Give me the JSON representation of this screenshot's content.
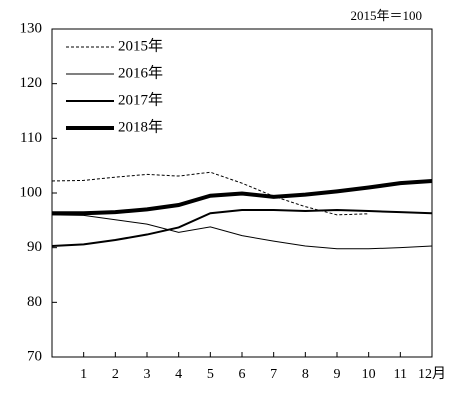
{
  "chart_data": {
    "type": "line",
    "note": "2015年＝100",
    "x": [
      0,
      1,
      2,
      3,
      4,
      5,
      6,
      7,
      8,
      9,
      10,
      11,
      12
    ],
    "xlim": [
      0,
      12
    ],
    "xticks": [
      1,
      2,
      3,
      4,
      5,
      6,
      7,
      8,
      9,
      10,
      11,
      {
        "value": 12,
        "label": "12月"
      }
    ],
    "ylim": [
      70,
      130
    ],
    "yticks": [
      70,
      80,
      90,
      100,
      110,
      120,
      130
    ],
    "legend": "upper left",
    "series": [
      {
        "name": "2015年",
        "color": "#000000",
        "dash": "3,2",
        "width": 1,
        "values": [
          102.2,
          102.3,
          102.9,
          103.4,
          103.1,
          103.8,
          101.8,
          99.4,
          97.5,
          96.0,
          96.2,
          null,
          null
        ]
      },
      {
        "name": "2016年",
        "color": "#000000",
        "width": 1,
        "values": [
          96.0,
          95.9,
          95.1,
          94.3,
          92.8,
          93.8,
          92.2,
          91.2,
          90.3,
          89.8,
          89.8,
          90.0,
          90.3
        ]
      },
      {
        "name": "2017年",
        "color": "#000000",
        "width": 2,
        "values": [
          90.3,
          90.6,
          91.4,
          92.4,
          93.7,
          96.3,
          96.9,
          96.9,
          96.7,
          96.9,
          96.7,
          96.5,
          96.3
        ]
      },
      {
        "name": "2018年",
        "color": "#000000",
        "width": 4,
        "values": [
          96.3,
          96.3,
          96.5,
          97.0,
          97.8,
          99.5,
          99.9,
          99.3,
          99.7,
          100.3,
          101.0,
          101.8,
          102.2
        ]
      }
    ]
  }
}
